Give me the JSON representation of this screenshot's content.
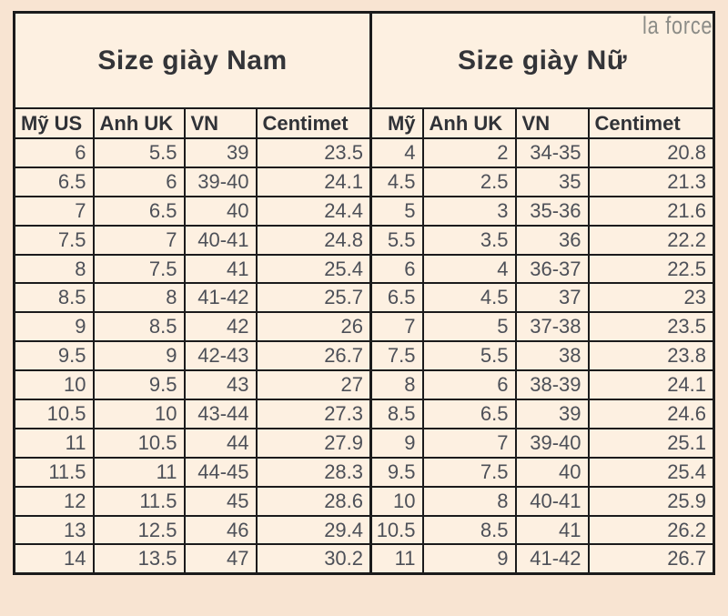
{
  "page": {
    "watermark": "la force"
  },
  "colors": {
    "page_background": "#f8e4d2",
    "cell_background": "#fdf0e1",
    "border": "#1b1b1c",
    "heading_text": "#333438",
    "data_text": "#4d5058",
    "watermark_text": "#8c8c87"
  },
  "tables": [
    {
      "title": "Size giày Nam",
      "headers": [
        "Mỹ US",
        "Anh UK",
        "VN",
        "Centimet"
      ],
      "rows": [
        [
          "6",
          "5.5",
          "39",
          "23.5"
        ],
        [
          "6.5",
          "6",
          "39-40",
          "24.1"
        ],
        [
          "7",
          "6.5",
          "40",
          "24.4"
        ],
        [
          "7.5",
          "7",
          "40-41",
          "24.8"
        ],
        [
          "8",
          "7.5",
          "41",
          "25.4"
        ],
        [
          "8.5",
          "8",
          "41-42",
          "25.7"
        ],
        [
          "9",
          "8.5",
          "42",
          "26"
        ],
        [
          "9.5",
          "9",
          "42-43",
          "26.7"
        ],
        [
          "10",
          "9.5",
          "43",
          "27"
        ],
        [
          "10.5",
          "10",
          "43-44",
          "27.3"
        ],
        [
          "11",
          "10.5",
          "44",
          "27.9"
        ],
        [
          "11.5",
          "11",
          "44-45",
          "28.3"
        ],
        [
          "12",
          "11.5",
          "45",
          "28.6"
        ],
        [
          "13",
          "12.5",
          "46",
          "29.4"
        ],
        [
          "14",
          "13.5",
          "47",
          "30.2"
        ]
      ]
    },
    {
      "title": "Size giày Nữ",
      "headers": [
        "Mỹ",
        "Anh UK",
        "VN",
        "Centimet"
      ],
      "rows": [
        [
          "4",
          "2",
          "34-35",
          "20.8"
        ],
        [
          "4.5",
          "2.5",
          "35",
          "21.3"
        ],
        [
          "5",
          "3",
          "35-36",
          "21.6"
        ],
        [
          "5.5",
          "3.5",
          "36",
          "22.2"
        ],
        [
          "6",
          "4",
          "36-37",
          "22.5"
        ],
        [
          "6.5",
          "4.5",
          "37",
          "23"
        ],
        [
          "7",
          "5",
          "37-38",
          "23.5"
        ],
        [
          "7.5",
          "5.5",
          "38",
          "23.8"
        ],
        [
          "8",
          "6",
          "38-39",
          "24.1"
        ],
        [
          "8.5",
          "6.5",
          "39",
          "24.6"
        ],
        [
          "9",
          "7",
          "39-40",
          "25.1"
        ],
        [
          "9.5",
          "7.5",
          "40",
          "25.4"
        ],
        [
          "10",
          "8",
          "40-41",
          "25.9"
        ],
        [
          "10.5",
          "8.5",
          "41",
          "26.2"
        ],
        [
          "11",
          "9",
          "41-42",
          "26.7"
        ]
      ]
    }
  ]
}
